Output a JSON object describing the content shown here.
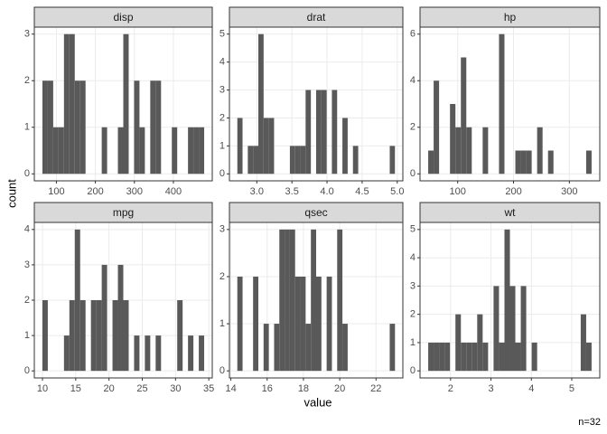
{
  "chart_data": {
    "type": "histogram",
    "xlabel": "value",
    "ylabel": "count",
    "caption": "n=32",
    "color": "#595959",
    "grid": true,
    "panels": [
      {
        "title": "disp",
        "bins": [
          64.19,
          78.01,
          91.84,
          105.66,
          119.48,
          133.31,
          147.13,
          160.96,
          174.78,
          188.6,
          202.43,
          216.25,
          230.08,
          243.9,
          257.72,
          271.55,
          285.37,
          299.19,
          313.02,
          326.84,
          340.67,
          354.49,
          368.31,
          382.14,
          395.96,
          409.78,
          423.61,
          437.43,
          451.26,
          465.08,
          478.91
        ],
        "counts": [
          2,
          2,
          1,
          1,
          3,
          3,
          2,
          2,
          0,
          0,
          0,
          1,
          0,
          0,
          1,
          3,
          0,
          2,
          1,
          0,
          2,
          2,
          0,
          0,
          1,
          0,
          0,
          1,
          1,
          1
        ],
        "xlim": [
          43.45,
          499.65
        ],
        "xticks": [
          100,
          200,
          300,
          400
        ],
        "ylim": [
          -0.15,
          3.15
        ],
        "yticks": [
          0,
          1,
          2,
          3
        ]
      },
      {
        "title": "drat",
        "bins": [
          2.723,
          2.797,
          2.872,
          2.947,
          3.022,
          3.097,
          3.172,
          3.246,
          3.321,
          3.396,
          3.471,
          3.546,
          3.621,
          3.695,
          3.77,
          3.845,
          3.92,
          3.995,
          4.069,
          4.144,
          4.219,
          4.294,
          4.369,
          4.444,
          4.518,
          4.593,
          4.668,
          4.743,
          4.818,
          4.893,
          4.967
        ],
        "counts": [
          2,
          0,
          1,
          1,
          5,
          2,
          2,
          0,
          0,
          0,
          1,
          1,
          1,
          3,
          0,
          3,
          3,
          0,
          3,
          0,
          2,
          0,
          1,
          0,
          0,
          0,
          0,
          0,
          0,
          1
        ],
        "xlim": [
          2.6104,
          5.0797
        ],
        "xticks": [
          {
            "value": 3,
            "label": "3.0"
          },
          {
            "value": 3.5,
            "label": "3.5"
          },
          {
            "value": 4,
            "label": "4.0"
          },
          {
            "value": 4.5,
            "label": "4.5"
          },
          {
            "value": 5,
            "label": "5.0"
          }
        ],
        "ylim": [
          -0.25,
          5.25
        ],
        "yticks": [
          0,
          1,
          2,
          3,
          4,
          5
        ]
      },
      {
        "title": "hp",
        "bins": [
          47.12,
          56.88,
          66.64,
          76.4,
          86.16,
          95.91,
          105.67,
          115.43,
          125.19,
          134.95,
          144.71,
          154.47,
          164.22,
          173.98,
          183.74,
          193.5,
          203.26,
          213.02,
          222.78,
          232.53,
          242.29,
          252.05,
          261.81,
          271.57,
          281.33,
          291.09,
          300.84,
          310.6,
          320.36,
          330.12,
          339.88
        ],
        "counts": [
          1,
          4,
          0,
          0,
          3,
          2,
          5,
          2,
          0,
          0,
          2,
          0,
          0,
          6,
          0,
          0,
          1,
          1,
          1,
          0,
          2,
          0,
          1,
          0,
          0,
          0,
          0,
          0,
          0,
          1
        ],
        "xlim": [
          32.483,
          354.517
        ],
        "xticks": [
          100,
          200,
          300
        ],
        "ylim": [
          -0.3,
          6.3
        ],
        "yticks": [
          0,
          2,
          4,
          6
        ]
      },
      {
        "title": "mpg",
        "bins": [
          9.995,
          10.805,
          11.616,
          12.426,
          13.236,
          14.047,
          14.857,
          15.667,
          16.478,
          17.288,
          18.098,
          18.909,
          19.719,
          20.529,
          21.34,
          22.15,
          22.96,
          23.771,
          24.581,
          25.391,
          26.202,
          27.012,
          27.822,
          28.633,
          29.443,
          30.253,
          31.064,
          31.874,
          32.684,
          33.495,
          34.305
        ],
        "counts": [
          2,
          0,
          0,
          0,
          1,
          2,
          4,
          2,
          0,
          2,
          2,
          3,
          0,
          2,
          3,
          2,
          0,
          1,
          0,
          1,
          0,
          1,
          0,
          0,
          0,
          2,
          0,
          1,
          0,
          1
        ],
        "xlim": [
          8.7793,
          35.5207
        ],
        "xticks": [
          10,
          15,
          20,
          25,
          30,
          35
        ],
        "ylim": [
          -0.2,
          4.2
        ],
        "yticks": [
          0,
          1,
          2,
          3,
          4
        ]
      },
      {
        "title": "qsec",
        "bins": [
          14.355,
          14.645,
          14.934,
          15.224,
          15.514,
          15.803,
          16.093,
          16.383,
          16.672,
          16.962,
          17.252,
          17.541,
          17.831,
          18.121,
          18.41,
          18.7,
          18.99,
          19.279,
          19.569,
          19.859,
          20.148,
          20.438,
          20.728,
          21.017,
          21.307,
          21.597,
          21.886,
          22.176,
          22.466,
          22.755,
          23.045
        ],
        "counts": [
          2,
          0,
          0,
          2,
          0,
          1,
          0,
          1,
          3,
          3,
          3,
          2,
          2,
          1,
          3,
          2,
          0,
          2,
          0,
          3,
          1,
          0,
          0,
          0,
          0,
          0,
          0,
          0,
          0,
          1
        ],
        "xlim": [
          13.9207,
          23.4793
        ],
        "xticks": [
          14,
          16,
          18,
          20,
          22
        ],
        "ylim": [
          -0.15,
          3.15
        ],
        "yticks": [
          0,
          1,
          2,
          3
        ]
      },
      {
        "title": "wt",
        "bins": [
          1.446,
          1.58,
          1.715,
          1.85,
          1.985,
          2.12,
          2.255,
          2.39,
          2.524,
          2.659,
          2.794,
          2.929,
          3.064,
          3.199,
          3.334,
          3.469,
          3.603,
          3.738,
          3.873,
          4.008,
          4.143,
          4.278,
          4.413,
          4.547,
          4.682,
          4.817,
          4.952,
          5.087,
          5.222,
          5.357,
          5.491
        ],
        "counts": [
          1,
          1,
          1,
          1,
          0,
          2,
          1,
          1,
          1,
          2,
          1,
          0,
          3,
          1,
          5,
          3,
          1,
          3,
          0,
          1,
          0,
          0,
          0,
          0,
          0,
          0,
          0,
          0,
          2,
          1
        ],
        "xlim": [
          1.2433,
          5.6937
        ],
        "xticks": [
          2,
          3,
          4,
          5
        ],
        "ylim": [
          -0.25,
          5.25
        ],
        "yticks": [
          0,
          1,
          2,
          3,
          4,
          5
        ]
      }
    ]
  }
}
